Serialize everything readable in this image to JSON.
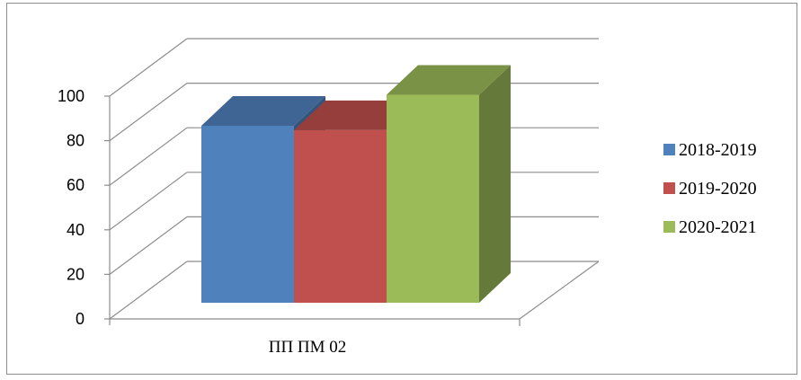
{
  "chart_data": {
    "type": "bar",
    "style": "3d-clustered",
    "categories": [
      "ПП ПМ 02"
    ],
    "series": [
      {
        "name": "2018-2019",
        "values": [
          80
        ],
        "color": "#4F81BD"
      },
      {
        "name": "2019-2020",
        "values": [
          78
        ],
        "color": "#C0504D"
      },
      {
        "name": "2020-2021",
        "values": [
          94
        ],
        "color": "#9BBB59"
      }
    ],
    "y_ticks": [
      "0",
      "20",
      "40",
      "60",
      "80",
      "100"
    ],
    "ylim": [
      0,
      100
    ],
    "grid": true,
    "legend_position": "right"
  }
}
